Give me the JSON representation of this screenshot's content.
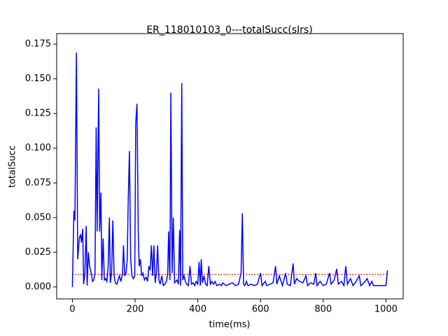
{
  "chart_data": {
    "type": "line",
    "title": "ER_118010103_0---totalSucc(sIrs)",
    "xlabel": "time(ms)",
    "ylabel": "totalSucc",
    "x": [
      0,
      5,
      8,
      13,
      17,
      22,
      26,
      29,
      33,
      36,
      40,
      44,
      47,
      51,
      55,
      60,
      64,
      68,
      72,
      76,
      79,
      84,
      87,
      91,
      94,
      98,
      102,
      106,
      110,
      114,
      118,
      121,
      125,
      129,
      133,
      137,
      142,
      146,
      150,
      155,
      160,
      163,
      167,
      171,
      175,
      178,
      182,
      186,
      190,
      194,
      199,
      202,
      206,
      210,
      213,
      217,
      221,
      225,
      230,
      235,
      240,
      244,
      248,
      252,
      256,
      260,
      264,
      268,
      272,
      276,
      280,
      285,
      290,
      295,
      300,
      304,
      307,
      311,
      314,
      318,
      322,
      326,
      330,
      334,
      338,
      342,
      345,
      349,
      352,
      356,
      360,
      365,
      370,
      375,
      380,
      385,
      390,
      395,
      400,
      404,
      408,
      411,
      415,
      420,
      425,
      430,
      435,
      440,
      445,
      450,
      455,
      460,
      470,
      475,
      480,
      490,
      500,
      510,
      520,
      530,
      538,
      542,
      546,
      550,
      555,
      560,
      570,
      580,
      590,
      600,
      605,
      615,
      620,
      630,
      640,
      648,
      652,
      660,
      670,
      680,
      685,
      695,
      704,
      708,
      715,
      725,
      735,
      745,
      750,
      760,
      770,
      776,
      780,
      790,
      800,
      810,
      820,
      825,
      835,
      843,
      848,
      858,
      866,
      872,
      877,
      887,
      895,
      905,
      915,
      920,
      930,
      940,
      948,
      955,
      960,
      970,
      980,
      990,
      1000,
      1005
    ],
    "values": [
      0.0,
      0.055,
      0.048,
      0.169,
      0.02,
      0.035,
      0.038,
      0.032,
      0.042,
      0.002,
      0.01,
      0.044,
      0.001,
      0.025,
      0.015,
      0.01,
      0.004,
      0.005,
      0.01,
      0.115,
      0.04,
      0.143,
      0.04,
      0.068,
      0.005,
      0.035,
      0.005,
      0.006,
      0.004,
      0.015,
      0.05,
      0.003,
      0.01,
      0.048,
      0.008,
      0.003,
      0.002,
      0.005,
      0.008,
      0.004,
      0.01,
      0.03,
      0.008,
      0.01,
      0.02,
      0.06,
      0.098,
      0.02,
      0.008,
      0.006,
      0.008,
      0.118,
      0.132,
      0.04,
      0.015,
      0.02,
      0.008,
      0.01,
      0.005,
      0.007,
      0.004,
      0.015,
      0.012,
      0.03,
      0.008,
      0.03,
      0.003,
      0.01,
      0.03,
      0.005,
      0.002,
      0.008,
      0.001,
      0.002,
      0.004,
      0.01,
      0.04,
      0.005,
      0.14,
      0.01,
      0.05,
      0.003,
      0.004,
      0.005,
      0.002,
      0.041,
      0.001,
      0.147,
      0.005,
      0.008,
      0.004,
      0.002,
      0.001,
      0.015,
      0.002,
      0.003,
      0.001,
      0.004,
      0.002,
      0.018,
      0.001,
      0.02,
      0.003,
      0.008,
      0.002,
      0.001,
      0.015,
      0.002,
      0.004,
      0.002,
      0.004,
      0.001,
      0.002,
      0.001,
      0.003,
      0.001,
      0.002,
      0.003,
      0.001,
      0.002,
      0.01,
      0.053,
      0.002,
      0.001,
      0.004,
      0.001,
      0.002,
      0.001,
      0.002,
      0.01,
      0.001,
      0.004,
      0.001,
      0.002,
      0.003,
      0.015,
      0.002,
      0.008,
      0.001,
      0.01,
      0.002,
      0.001,
      0.017,
      0.002,
      0.006,
      0.004,
      0.003,
      0.008,
      0.001,
      0.003,
      0.002,
      0.01,
      0.001,
      0.004,
      0.001,
      0.002,
      0.01,
      0.002,
      0.005,
      0.013,
      0.002,
      0.004,
      0.001,
      0.015,
      0.002,
      0.006,
      0.001,
      0.004,
      0.008,
      0.001,
      0.003,
      0.006,
      0.001,
      0.004,
      0.001,
      0.001,
      0.001,
      0.001,
      0.001,
      0.012
    ],
    "color": "#0000ff",
    "hline": {
      "y": 0.009,
      "color": "#ff0000",
      "style": "dotted"
    },
    "xlim": [
      -50,
      1055
    ],
    "ylim": [
      -0.0086,
      0.1826
    ],
    "xticks": [
      0,
      200,
      400,
      600,
      800,
      1000
    ],
    "yticks": [
      {
        "value": 0,
        "label": "0.000"
      },
      {
        "value": 0.025,
        "label": "0.025"
      },
      {
        "value": 0.05,
        "label": "0.050"
      },
      {
        "value": 0.075,
        "label": "0.075"
      },
      {
        "value": 0.1,
        "label": "0.100"
      },
      {
        "value": 0.125,
        "label": "0.125"
      },
      {
        "value": 0.15,
        "label": "0.150"
      },
      {
        "value": 0.175,
        "label": "0.175"
      }
    ]
  }
}
